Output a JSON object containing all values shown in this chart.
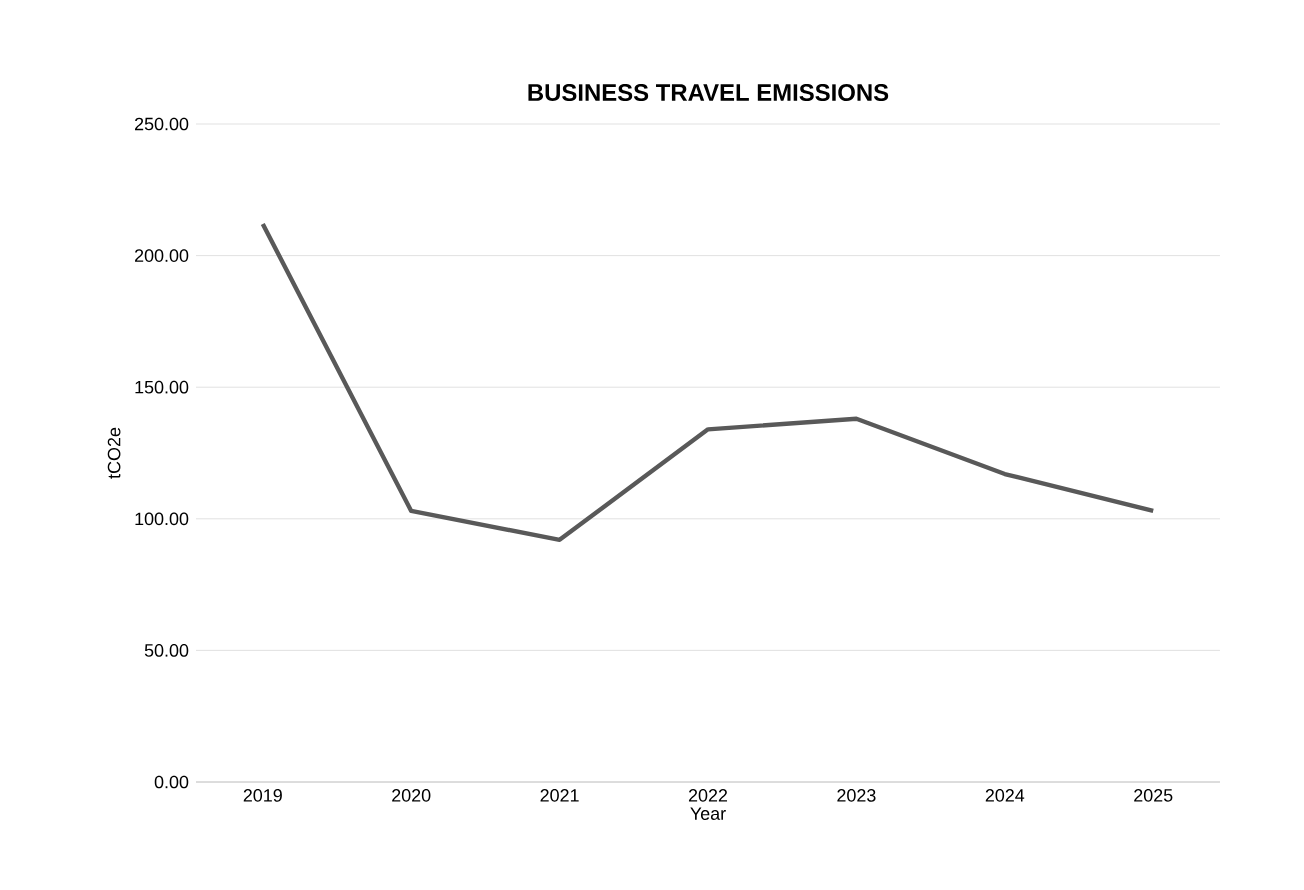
{
  "chart_data": {
    "type": "line",
    "title": "BUSINESS TRAVEL EMISSIONS",
    "xlabel": "Year",
    "ylabel": "tCO2e",
    "categories": [
      "2019",
      "2020",
      "2021",
      "2022",
      "2023",
      "2024",
      "2025"
    ],
    "series": [
      {
        "color": "#595959",
        "values": [
          212,
          103,
          92,
          134,
          138,
          117,
          103
        ]
      }
    ],
    "ylim": [
      0,
      250
    ],
    "yticks": [
      {
        "value": 0,
        "label": "0.00"
      },
      {
        "value": 50,
        "label": "50.00"
      },
      {
        "value": 100,
        "label": "100.00"
      },
      {
        "value": 150,
        "label": "150.00"
      },
      {
        "value": 200,
        "label": "200.00"
      },
      {
        "value": 250,
        "label": "250.00"
      }
    ],
    "grid": "y",
    "marker": "none",
    "line_style": "solid"
  }
}
